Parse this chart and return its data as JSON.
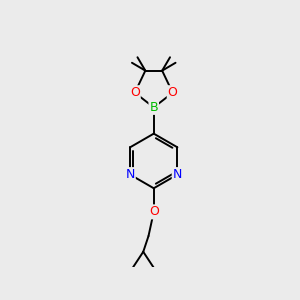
{
  "background_color": "#ebebeb",
  "bond_color": "#000000",
  "N_color": "#0000ff",
  "O_color": "#ff0000",
  "B_color": "#00bb00",
  "line_width": 1.4,
  "dbo": 0.05,
  "xlim": [
    -1.5,
    1.5
  ],
  "ylim": [
    -2.2,
    2.2
  ]
}
